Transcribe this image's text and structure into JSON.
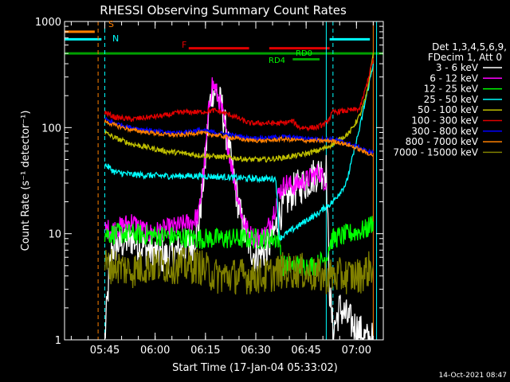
{
  "chart_data": {
    "type": "line",
    "title": "RHESSI Observing Summary Count Rates",
    "xlabel": "Start Time (17-Jan-04 05:33:02)",
    "ylabel": "Count Rate (s⁻¹ detector⁻¹)",
    "yscale": "log",
    "ylim": [
      1,
      1000
    ],
    "xlim_minutes": [
      0,
      95
    ],
    "y_ticks": [
      {
        "value": 1,
        "label": "1"
      },
      {
        "value": 10,
        "label": "10"
      },
      {
        "value": 100,
        "label": "100"
      },
      {
        "value": 1000,
        "label": "1000"
      }
    ],
    "x_ticks": [
      {
        "t": 12,
        "label": "05:45"
      },
      {
        "t": 27,
        "label": "06:00"
      },
      {
        "t": 42,
        "label": "06:15"
      },
      {
        "t": 57,
        "label": "06:30"
      },
      {
        "t": 72,
        "label": "06:45"
      },
      {
        "t": 87,
        "label": "07:00"
      }
    ],
    "legend_header": [
      "Det 1,3,4,5,6,9,",
      "FDecim 1, Att 0"
    ],
    "footer_timestamp": "14-Oct-2021 08:47",
    "flag_labels": {
      "S": "S",
      "N": "N",
      "F": "F",
      "RD0": "RD0",
      "RD4": "RD4"
    },
    "flags": [
      {
        "label": "S",
        "color": "#ff8000",
        "t0": 0,
        "t1": 9,
        "y": 800
      },
      {
        "label": "N",
        "color": "#00ffff",
        "t0": 0,
        "t1": 11,
        "y": 680
      },
      {
        "label": "N",
        "color": "#00ffff",
        "t0": 79,
        "t1": 91,
        "y": 680
      },
      {
        "label": "F",
        "color": "#e00000",
        "t0": 37,
        "t1": 55,
        "y": 560
      },
      {
        "label": "F",
        "color": "#e00000",
        "t0": 61,
        "t1": 79,
        "y": 560
      },
      {
        "label": "RD0",
        "color": "#00a000",
        "t0": 0,
        "t1": 95,
        "y": 500
      },
      {
        "label": "RD4",
        "color": "#00a000",
        "t0": 68,
        "t1": 76,
        "y": 440
      }
    ],
    "vlines": [
      {
        "t": 10,
        "color": "#ff8000",
        "dash": true
      },
      {
        "t": 12,
        "color": "#00ffff",
        "dash": true
      },
      {
        "t": 78,
        "color": "#00ffff",
        "dash": false
      },
      {
        "t": 80,
        "color": "#00ffff",
        "dash": true
      },
      {
        "t": 92,
        "color": "#ff8000",
        "dash": false
      },
      {
        "t": 93,
        "color": "#00ffff",
        "dash": false
      }
    ],
    "series": [
      {
        "name": "3 - 6 keV",
        "color": "#ffffff",
        "noise": 0.35,
        "t": [
          12,
          13,
          14,
          16,
          20,
          25,
          30,
          35,
          38,
          40,
          42,
          43,
          44,
          45,
          47,
          50,
          53,
          55,
          57,
          60,
          62,
          64,
          66,
          68,
          70,
          72,
          74,
          76,
          78,
          79,
          80,
          82,
          85,
          88,
          90,
          92
        ],
        "v": [
          1,
          3,
          7,
          8,
          9,
          7,
          6,
          7,
          8,
          12,
          50,
          140,
          230,
          220,
          150,
          40,
          12,
          8,
          6,
          7,
          9,
          15,
          20,
          25,
          28,
          30,
          35,
          38,
          40,
          3,
          1.2,
          2,
          1.5,
          1.2,
          1,
          1
        ]
      },
      {
        "name": "6 - 12 keV",
        "color": "#ff00ff",
        "noise": 0.2,
        "t": [
          12,
          15,
          20,
          25,
          30,
          35,
          38,
          40,
          42,
          43,
          44,
          45,
          47,
          50,
          53,
          55,
          57,
          60,
          62,
          64,
          66,
          68,
          70,
          72,
          74,
          76,
          78
        ],
        "v": [
          11,
          11,
          13,
          10,
          11,
          12,
          13,
          15,
          55,
          150,
          260,
          230,
          140,
          40,
          14,
          10,
          9,
          10,
          15,
          25,
          30,
          28,
          30,
          32,
          35,
          38,
          30
        ]
      },
      {
        "name": "12 - 25 keV",
        "color": "#00ff00",
        "noise": 0.2,
        "t": [
          12,
          20,
          30,
          40,
          50,
          60,
          64,
          65,
          70,
          75,
          78,
          79,
          80,
          85,
          90,
          92
        ],
        "v": [
          10,
          10,
          9.5,
          9,
          9,
          9,
          9,
          5,
          5,
          5,
          6,
          8,
          9,
          10,
          11,
          13
        ]
      },
      {
        "name": "25 - 50 keV",
        "color": "#00ffff",
        "noise": 0.06,
        "t": [
          12,
          15,
          20,
          30,
          40,
          50,
          55,
          60,
          63,
          64,
          66,
          70,
          73,
          75,
          77,
          78,
          80,
          84,
          86,
          88,
          90,
          92
        ],
        "v": [
          45,
          38,
          36,
          35,
          35,
          34,
          33,
          33,
          33,
          9,
          10,
          12,
          14,
          15,
          17,
          18,
          20,
          30,
          55,
          100,
          200,
          400
        ]
      },
      {
        "name": "50 - 100 keV",
        "color": "#c0c000",
        "noise": 0.05,
        "t": [
          12,
          15,
          20,
          30,
          40,
          50,
          55,
          60,
          65,
          70,
          75,
          78,
          80,
          85,
          88,
          90,
          92
        ],
        "v": [
          90,
          80,
          70,
          60,
          55,
          52,
          50,
          50,
          52,
          55,
          60,
          65,
          70,
          90,
          130,
          200,
          500
        ]
      },
      {
        "name": "100 - 300 keV",
        "color": "#e00000",
        "noise": 0.05,
        "t": [
          12,
          15,
          20,
          25,
          30,
          35,
          40,
          45,
          50,
          55,
          60,
          65,
          68,
          70,
          75,
          78,
          80,
          85,
          88,
          90,
          92
        ],
        "v": [
          140,
          125,
          120,
          125,
          130,
          140,
          140,
          145,
          130,
          110,
          110,
          110,
          115,
          100,
          100,
          110,
          140,
          145,
          150,
          250,
          450
        ]
      },
      {
        "name": "300 - 800 keV",
        "color": "#0000ff",
        "noise": 0.04,
        "t": [
          12,
          15,
          20,
          25,
          30,
          35,
          40,
          45,
          50,
          55,
          60,
          65,
          70,
          75,
          80,
          85,
          88,
          90,
          92
        ],
        "v": [
          120,
          110,
          100,
          95,
          90,
          90,
          95,
          90,
          85,
          80,
          80,
          82,
          80,
          78,
          78,
          70,
          65,
          60,
          58
        ]
      },
      {
        "name": "800 - 7000 keV",
        "color": "#ff8000",
        "noise": 0.04,
        "t": [
          12,
          15,
          20,
          25,
          30,
          35,
          40,
          45,
          50,
          55,
          60,
          65,
          70,
          75,
          80,
          85,
          88,
          90,
          92
        ],
        "v": [
          115,
          105,
          95,
          90,
          86,
          85,
          90,
          85,
          80,
          76,
          75,
          78,
          76,
          75,
          75,
          68,
          62,
          58,
          55
        ]
      },
      {
        "name": "7000 - 15000 keV",
        "color": "#808000",
        "noise": 0.35,
        "t": [
          12,
          15,
          20,
          25,
          30,
          35,
          40,
          45,
          50,
          55,
          60,
          65,
          70,
          75,
          80,
          85,
          88,
          90,
          92
        ],
        "v": [
          5,
          5,
          4.5,
          5,
          5,
          5,
          5,
          4,
          4,
          4,
          4,
          4.5,
          4.5,
          4,
          4,
          4,
          4,
          4.5,
          5
        ]
      }
    ]
  }
}
